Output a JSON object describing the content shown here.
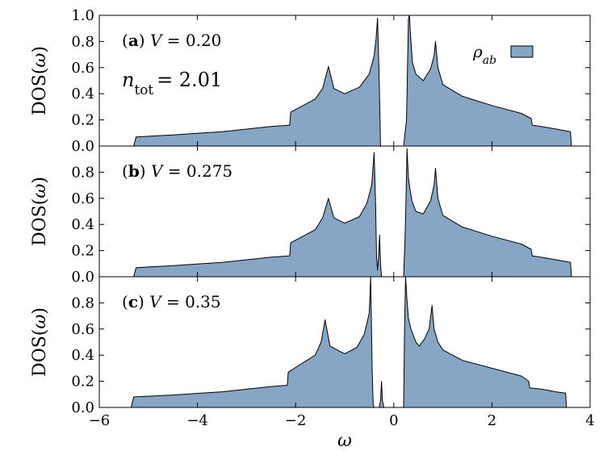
{
  "figure": {
    "xlabel": "ω",
    "fill_color": "#87a6c6",
    "line_color": "#000000"
  },
  "chart_data": [
    {
      "type": "area",
      "panel_label": "(a)",
      "annotation": "V = 0.20",
      "extra_annotation": "n_tot = 2.01",
      "legend": {
        "label": "ρ_ab",
        "placement": "top-right"
      },
      "ylabel": "DOS(ω)",
      "xlim": [
        -6,
        4
      ],
      "ylim": [
        0,
        1.0
      ],
      "yticks": [
        "0.0",
        "0.2",
        "0.4",
        "0.6",
        "0.8",
        "1.0"
      ],
      "xticks": [],
      "series": [
        {
          "name": "ρ_ab",
          "x": [
            -5.3,
            -5.25,
            -4.5,
            -3.5,
            -2.5,
            -2.12,
            -2.1,
            -1.9,
            -1.6,
            -1.45,
            -1.33,
            -1.22,
            -1.0,
            -0.7,
            -0.5,
            -0.4,
            -0.36,
            -0.33,
            -0.3,
            -0.28,
            -0.27,
            0.2,
            0.26,
            0.28,
            0.3,
            0.32,
            0.34,
            0.38,
            0.45,
            0.6,
            0.75,
            0.82,
            0.85,
            0.9,
            1.0,
            1.4,
            2.0,
            2.6,
            2.8,
            2.82,
            3.0,
            3.3,
            3.6,
            3.62
          ],
          "y": [
            0,
            0.07,
            0.085,
            0.11,
            0.15,
            0.16,
            0.26,
            0.3,
            0.36,
            0.44,
            0.61,
            0.44,
            0.4,
            0.45,
            0.55,
            0.69,
            0.82,
            0.98,
            0.55,
            0.2,
            0,
            0,
            0.2,
            0.6,
            0.98,
            1.0,
            0.85,
            0.64,
            0.55,
            0.5,
            0.59,
            0.69,
            0.8,
            0.6,
            0.47,
            0.38,
            0.31,
            0.25,
            0.21,
            0.16,
            0.15,
            0.13,
            0.11,
            0
          ]
        }
      ]
    },
    {
      "type": "area",
      "panel_label": "(b)",
      "annotation": "V = 0.275",
      "ylabel": "DOS(ω)",
      "xlim": [
        -6,
        4
      ],
      "ylim": [
        0,
        1.0
      ],
      "yticks": [
        "0.0",
        "0.2",
        "0.4",
        "0.6",
        "0.8"
      ],
      "xticks": [],
      "series": [
        {
          "name": "ρ_ab",
          "x": [
            -5.3,
            -5.25,
            -4.5,
            -3.5,
            -2.5,
            -2.12,
            -2.1,
            -1.9,
            -1.6,
            -1.45,
            -1.33,
            -1.22,
            -1.0,
            -0.7,
            -0.55,
            -0.45,
            -0.4,
            -0.37,
            -0.35,
            -0.33,
            -0.31,
            -0.29,
            -0.27,
            -0.25,
            -0.22,
            -0.2,
            0.2,
            0.23,
            0.25,
            0.27,
            0.3,
            0.33,
            0.37,
            0.4,
            0.45,
            0.6,
            0.75,
            0.82,
            0.85,
            0.9,
            1.0,
            1.4,
            2.0,
            2.6,
            2.8,
            2.82,
            3.0,
            3.3,
            3.6,
            3.62
          ],
          "y": [
            0,
            0.07,
            0.085,
            0.11,
            0.15,
            0.16,
            0.26,
            0.3,
            0.36,
            0.45,
            0.6,
            0.45,
            0.41,
            0.46,
            0.56,
            0.7,
            0.95,
            0.55,
            0.15,
            0.05,
            0.15,
            0.32,
            0.1,
            0.0,
            0.0,
            0,
            0,
            0.3,
            0.6,
            0.98,
            0.75,
            0.67,
            0.58,
            0.55,
            0.5,
            0.48,
            0.58,
            0.7,
            0.83,
            0.6,
            0.47,
            0.38,
            0.31,
            0.25,
            0.21,
            0.16,
            0.15,
            0.13,
            0.11,
            0
          ]
        }
      ]
    },
    {
      "type": "area",
      "panel_label": "(c)",
      "annotation": "V = 0.35",
      "ylabel": "DOS(ω)",
      "xlim": [
        -6,
        4
      ],
      "ylim": [
        0,
        1.0
      ],
      "yticks": [
        "0.0",
        "0.2",
        "0.4",
        "0.6",
        "0.8"
      ],
      "xticks": [
        "−6",
        "−4",
        "−2",
        "0",
        "2",
        "4"
      ],
      "series": [
        {
          "name": "ρ_ab",
          "x": [
            -5.35,
            -5.3,
            -4.5,
            -3.5,
            -2.5,
            -2.17,
            -2.15,
            -1.9,
            -1.6,
            -1.48,
            -1.4,
            -1.3,
            -1.0,
            -0.75,
            -0.6,
            -0.5,
            -0.47,
            -0.44,
            -0.42,
            -0.4,
            -0.3,
            -0.27,
            -0.25,
            -0.23,
            -0.2,
            0.2,
            0.22,
            0.24,
            0.27,
            0.3,
            0.35,
            0.45,
            0.52,
            0.62,
            0.72,
            0.78,
            0.82,
            0.9,
            1.0,
            1.4,
            2.0,
            2.6,
            2.75,
            2.77,
            3.0,
            3.3,
            3.5,
            3.52
          ],
          "y": [
            0,
            0.08,
            0.095,
            0.12,
            0.16,
            0.17,
            0.27,
            0.33,
            0.4,
            0.5,
            0.67,
            0.47,
            0.41,
            0.46,
            0.56,
            0.72,
            1.0,
            0.3,
            0.02,
            0,
            0,
            0.05,
            0.2,
            0.05,
            0,
            0,
            0.6,
            1.0,
            0.82,
            0.68,
            0.6,
            0.5,
            0.47,
            0.52,
            0.6,
            0.78,
            0.6,
            0.5,
            0.44,
            0.36,
            0.3,
            0.24,
            0.2,
            0.15,
            0.14,
            0.12,
            0.11,
            0
          ]
        }
      ]
    }
  ]
}
